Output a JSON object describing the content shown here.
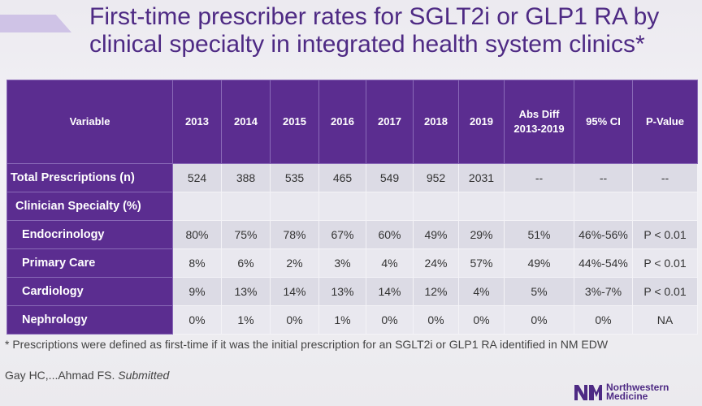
{
  "slide": {
    "title": "First-time prescriber rates for SGLT2i or GLP1 RA by clinical specialty in integrated health system clinics*"
  },
  "table": {
    "headers": [
      "Variable",
      "2013",
      "2014",
      "2015",
      "2016",
      "2017",
      "2018",
      "2019",
      "Abs Diff 2013-2019",
      "95% CI",
      "P-Value"
    ],
    "rows": [
      {
        "label": "Total Prescriptions (n)",
        "values": [
          "524",
          "388",
          "535",
          "465",
          "549",
          "952",
          "2031",
          "--",
          "--",
          "--"
        ]
      },
      {
        "label": "Clinician Specialty (%)",
        "values": [
          "",
          "",
          "",
          "",
          "",
          "",
          "",
          "",
          "",
          ""
        ]
      },
      {
        "label": "Endocrinology",
        "values": [
          "80%",
          "75%",
          "78%",
          "67%",
          "60%",
          "49%",
          "29%",
          "51%",
          "46%-56%",
          "P < 0.01"
        ]
      },
      {
        "label": "Primary Care",
        "values": [
          "8%",
          "6%",
          "2%",
          "3%",
          "4%",
          "24%",
          "57%",
          "49%",
          "44%-54%",
          "P < 0.01"
        ]
      },
      {
        "label": "Cardiology",
        "values": [
          "9%",
          "13%",
          "14%",
          "13%",
          "14%",
          "12%",
          "4%",
          "5%",
          "3%-7%",
          "P < 0.01"
        ]
      },
      {
        "label": "Nephrology",
        "values": [
          "0%",
          "1%",
          "0%",
          "1%",
          "0%",
          "0%",
          "0%",
          "0%",
          "0%",
          "NA"
        ]
      }
    ]
  },
  "footnote": "* Prescriptions were defined as first-time if it was the initial prescription for an SGLT2i or GLP1 RA identified in NM EDW",
  "citation": {
    "authors": "Gay HC,...Ahmad FS.",
    "status": "Submitted"
  },
  "logo": {
    "line1": "Northwestern",
    "line2": "Medicine"
  }
}
